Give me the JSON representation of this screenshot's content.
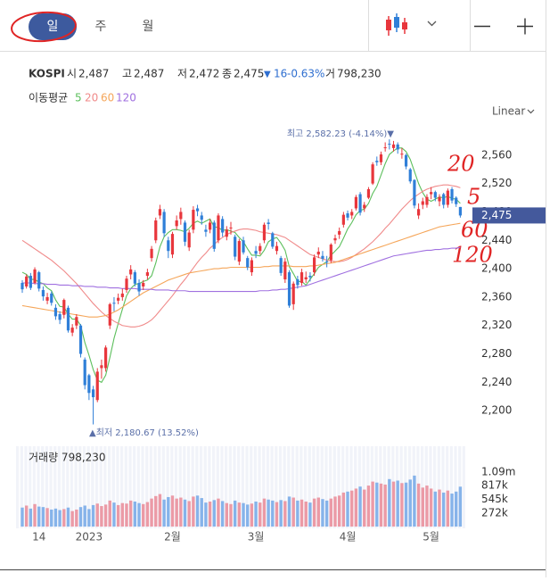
{
  "tabs": [
    "일",
    "주",
    "월"
  ],
  "linear_toggle": "Linear",
  "quote": {
    "symbol": "KOSPI",
    "open_label": "시",
    "open": "2,487",
    "high_label": "고",
    "high": "2,487",
    "low_label": "저",
    "low": "2,472",
    "close_label": "종",
    "close": "2,475",
    "change_arrow": "▼",
    "change": "16",
    "change_pct": "-0.63%",
    "volume_label": "거",
    "volume": "798,230"
  },
  "ma_legend_title": "이동평균",
  "handwritten": [
    "20",
    "5",
    "60",
    "120"
  ],
  "chart_data": {
    "type": "candlestick",
    "categories": [
      null,
      null,
      null,
      null,
      "14",
      null,
      null,
      null,
      null,
      null,
      null,
      null,
      null,
      null,
      null,
      null,
      "2023",
      null,
      null,
      null,
      null,
      null,
      null,
      null,
      null,
      null,
      null,
      null,
      null,
      null,
      null,
      null,
      null,
      null,
      null,
      null,
      "2월",
      null,
      null,
      null,
      null,
      null,
      null,
      null,
      null,
      null,
      null,
      null,
      null,
      null,
      null,
      null,
      null,
      null,
      null,
      null,
      "3월",
      null,
      null,
      null,
      null,
      null,
      null,
      null,
      null,
      null,
      null,
      null,
      null,
      null,
      null,
      null,
      null,
      null,
      null,
      null,
      null,
      null,
      "4월",
      null,
      null,
      null,
      null,
      null,
      null,
      null,
      null,
      null,
      null,
      null,
      null,
      null,
      null,
      null,
      null,
      null,
      null,
      null,
      "5월",
      null,
      null,
      null,
      null,
      null,
      null,
      null
    ],
    "open": [
      2380,
      2375,
      2390,
      2380,
      2395,
      2370,
      2355,
      2365,
      2345,
      2336,
      2335,
      2345,
      2310,
      2320,
      2320,
      2272,
      2250,
      2230,
      2215,
      2260,
      2260,
      2320,
      2352,
      2355,
      2360,
      2370,
      2392,
      2395,
      2380,
      2375,
      2390,
      2415,
      2440,
      2475,
      2480,
      2440,
      2420,
      2460,
      2470,
      2465,
      2430,
      2455,
      2485,
      2475,
      2455,
      2455,
      2465,
      2440,
      2470,
      2445,
      2458,
      2445,
      2410,
      2440,
      2415,
      2395,
      2425,
      2425,
      2440,
      2465,
      2450,
      2425,
      2415,
      2385,
      2395,
      2350,
      2385,
      2380,
      2385,
      2390,
      2395,
      2420,
      2418,
      2410,
      2412,
      2440,
      2448,
      2462,
      2478,
      2475,
      2485,
      2505,
      2485,
      2500,
      2520,
      2552,
      2550,
      2570,
      2576,
      2570,
      2575,
      2562,
      2560,
      2540,
      2525,
      2475,
      2490,
      2490,
      2505,
      2508,
      2495,
      2505,
      2490,
      2512,
      2500,
      2487
    ],
    "high": [
      2384,
      2392,
      2394,
      2402,
      2397,
      2375,
      2366,
      2368,
      2350,
      2340,
      2358,
      2348,
      2322,
      2336,
      2322,
      2275,
      2252,
      2235,
      2260,
      2272,
      2292,
      2352,
      2360,
      2365,
      2372,
      2390,
      2405,
      2398,
      2385,
      2384,
      2400,
      2432,
      2472,
      2490,
      2484,
      2445,
      2452,
      2475,
      2486,
      2468,
      2455,
      2488,
      2490,
      2480,
      2462,
      2470,
      2468,
      2478,
      2474,
      2460,
      2466,
      2448,
      2442,
      2445,
      2418,
      2416,
      2432,
      2436,
      2465,
      2470,
      2452,
      2438,
      2418,
      2415,
      2398,
      2382,
      2390,
      2400,
      2396,
      2395,
      2420,
      2430,
      2425,
      2418,
      2436,
      2448,
      2458,
      2480,
      2482,
      2484,
      2504,
      2508,
      2494,
      2515,
      2550,
      2558,
      2565,
      2578,
      2582.23,
      2580,
      2578,
      2570,
      2562,
      2542,
      2526,
      2492,
      2500,
      2505,
      2515,
      2510,
      2505,
      2507,
      2513,
      2515,
      2502,
      2487
    ],
    "low": [
      2366,
      2372,
      2370,
      2378,
      2368,
      2355,
      2350,
      2348,
      2328,
      2322,
      2330,
      2310,
      2305,
      2315,
      2275,
      2230,
      2215,
      2180.67,
      2212,
      2245,
      2255,
      2315,
      2340,
      2350,
      2355,
      2366,
      2385,
      2375,
      2362,
      2370,
      2385,
      2410,
      2436,
      2470,
      2445,
      2415,
      2415,
      2455,
      2462,
      2432,
      2425,
      2450,
      2474,
      2462,
      2445,
      2450,
      2424,
      2436,
      2445,
      2440,
      2448,
      2412,
      2405,
      2420,
      2398,
      2390,
      2415,
      2420,
      2436,
      2455,
      2428,
      2420,
      2390,
      2380,
      2345,
      2342,
      2372,
      2376,
      2380,
      2382,
      2390,
      2415,
      2410,
      2402,
      2408,
      2435,
      2442,
      2458,
      2468,
      2470,
      2482,
      2475,
      2480,
      2498,
      2518,
      2545,
      2546,
      2565,
      2568,
      2565,
      2562,
      2555,
      2540,
      2520,
      2485,
      2470,
      2484,
      2486,
      2498,
      2495,
      2488,
      2485,
      2486,
      2492,
      2487,
      2472
    ],
    "close": [
      2371,
      2389,
      2373,
      2399,
      2372,
      2361,
      2360,
      2352,
      2333,
      2328,
      2356,
      2313,
      2317,
      2332,
      2280,
      2236,
      2225,
      2219,
      2255,
      2264,
      2289,
      2350,
      2351,
      2359,
      2365,
      2386,
      2399,
      2379,
      2368,
      2380,
      2395,
      2428,
      2468,
      2484,
      2450,
      2425,
      2449,
      2468,
      2480,
      2438,
      2451,
      2483,
      2481,
      2469,
      2452,
      2465,
      2428,
      2475,
      2451,
      2455,
      2458,
      2417,
      2439,
      2423,
      2402,
      2412,
      2421,
      2432,
      2462,
      2463,
      2431,
      2432,
      2394,
      2410,
      2348,
      2379,
      2377,
      2395,
      2388,
      2388,
      2416,
      2424,
      2414,
      2409,
      2434,
      2443,
      2453,
      2476,
      2472,
      2480,
      2501,
      2479,
      2490,
      2512,
      2547,
      2550,
      2561,
      2571,
      2575,
      2575,
      2568,
      2562,
      2544,
      2523,
      2489,
      2484,
      2495,
      2501,
      2508,
      2500,
      2501,
      2490,
      2510,
      2496,
      2491,
      2475
    ],
    "up_color": "#e8363c",
    "down_color": "#2f7fd8",
    "ylim": [
      2160,
      2600
    ],
    "yticks": [
      {
        "value": 2200,
        "label": "2,200"
      },
      {
        "value": 2240,
        "label": "2,240"
      },
      {
        "value": 2280,
        "label": "2,280"
      },
      {
        "value": 2320,
        "label": "2,320"
      },
      {
        "value": 2360,
        "label": "2,360"
      },
      {
        "value": 2400,
        "label": "2,400"
      },
      {
        "value": 2440,
        "label": "2,440"
      },
      {
        "value": 2480,
        "label": "2,480"
      },
      {
        "value": 2520,
        "label": "2,520"
      },
      {
        "value": 2560,
        "label": "2,560"
      }
    ],
    "grid": false,
    "last_price_label": "2,475",
    "last_price_color": "#44599c",
    "annotations": [
      "최고 2,582.23 (-4.14%)▼",
      "▲최저 2,180.67 (13.52%)"
    ],
    "series": [
      {
        "name": "5",
        "color": "#5cbf5c",
        "values": [
          2395,
          2392,
          2385,
          2385,
          2381,
          2379,
          2373,
          2369,
          2356,
          2347,
          2346,
          2336,
          2329,
          2329,
          2320,
          2296,
          2278,
          2258,
          2243,
          2240,
          2250,
          2275,
          2302,
          2323,
          2343,
          2362,
          2372,
          2378,
          2379,
          2382,
          2384,
          2390,
          2408,
          2431,
          2445,
          2451,
          2455,
          2455,
          2454,
          2452,
          2457,
          2464,
          2467,
          2464,
          2467,
          2470,
          2459,
          2458,
          2454,
          2455,
          2453,
          2451,
          2444,
          2438,
          2428,
          2419,
          2419,
          2418,
          2426,
          2438,
          2442,
          2444,
          2436,
          2426,
          2403,
          2393,
          2382,
          2382,
          2377,
          2385,
          2393,
          2402,
          2406,
          2410,
          2419,
          2425,
          2431,
          2443,
          2456,
          2465,
          2476,
          2482,
          2484,
          2492,
          2506,
          2516,
          2532,
          2548,
          2561,
          2566,
          2570,
          2570,
          2565,
          2554,
          2537,
          2520,
          2507,
          2498,
          2495,
          2498,
          2501,
          2500,
          2502,
          2499,
          2498,
          2492
        ]
      },
      {
        "name": "20",
        "color": "#f08a8a",
        "values": [
          2440,
          2436,
          2432,
          2428,
          2424,
          2420,
          2416,
          2412,
          2407,
          2402,
          2397,
          2391,
          2385,
          2379,
          2372,
          2365,
          2358,
          2351,
          2345,
          2339,
          2334,
          2330,
          2326,
          2323,
          2320,
          2319,
          2318,
          2318,
          2319,
          2321,
          2324,
          2328,
          2334,
          2341,
          2348,
          2355,
          2362,
          2370,
          2378,
          2385,
          2393,
          2401,
          2409,
          2416,
          2422,
          2429,
          2434,
          2440,
          2444,
          2448,
          2451,
          2453,
          2455,
          2456,
          2456,
          2455,
          2454,
          2452,
          2451,
          2450,
          2449,
          2448,
          2446,
          2444,
          2440,
          2436,
          2432,
          2428,
          2424,
          2420,
          2418,
          2416,
          2414,
          2412,
          2411,
          2410,
          2410,
          2411,
          2413,
          2416,
          2420,
          2424,
          2428,
          2433,
          2438,
          2444,
          2450,
          2457,
          2463,
          2470,
          2477,
          2484,
          2490,
          2496,
          2501,
          2505,
          2509,
          2512,
          2514,
          2516,
          2517,
          2518,
          2518,
          2517,
          2516,
          2514
        ]
      },
      {
        "name": "60",
        "color": "#f5a65a",
        "values": [
          2348,
          2347,
          2346,
          2345,
          2344,
          2343,
          2342,
          2341,
          2340,
          2339,
          2338,
          2337,
          2336,
          2335,
          2334,
          2333,
          2332,
          2332,
          2332,
          2333,
          2334,
          2336,
          2339,
          2342,
          2346,
          2350,
          2354,
          2358,
          2362,
          2366,
          2369,
          2372,
          2375,
          2378,
          2381,
          2384,
          2386,
          2388,
          2390,
          2392,
          2394,
          2395,
          2396,
          2397,
          2398,
          2399,
          2400,
          2400,
          2401,
          2401,
          2402,
          2402,
          2402,
          2402,
          2402,
          2402,
          2402,
          2402,
          2403,
          2403,
          2404,
          2404,
          2404,
          2404,
          2404,
          2403,
          2403,
          2403,
          2403,
          2404,
          2404,
          2405,
          2406,
          2407,
          2408,
          2409,
          2411,
          2413,
          2415,
          2417,
          2419,
          2421,
          2423,
          2425,
          2427,
          2429,
          2431,
          2433,
          2435,
          2437,
          2439,
          2441,
          2443,
          2445,
          2447,
          2449,
          2451,
          2453,
          2455,
          2457,
          2459,
          2460,
          2461,
          2462,
          2463,
          2464
        ]
      },
      {
        "name": "120",
        "color": "#a070e0",
        "values": [
          2380,
          2380,
          2380,
          2379,
          2379,
          2379,
          2378,
          2378,
          2378,
          2377,
          2377,
          2377,
          2376,
          2376,
          2376,
          2375,
          2375,
          2375,
          2374,
          2374,
          2374,
          2373,
          2373,
          2373,
          2372,
          2372,
          2372,
          2372,
          2371,
          2371,
          2371,
          2371,
          2370,
          2370,
          2370,
          2370,
          2369,
          2369,
          2369,
          2369,
          2368,
          2368,
          2368,
          2368,
          2368,
          2368,
          2368,
          2368,
          2368,
          2368,
          2368,
          2368,
          2368,
          2368,
          2368,
          2368,
          2368,
          2369,
          2369,
          2369,
          2370,
          2370,
          2371,
          2371,
          2372,
          2373,
          2374,
          2375,
          2376,
          2378,
          2380,
          2382,
          2384,
          2386,
          2388,
          2390,
          2392,
          2394,
          2396,
          2398,
          2400,
          2402,
          2404,
          2406,
          2408,
          2410,
          2412,
          2414,
          2416,
          2418,
          2419,
          2420,
          2421,
          2422,
          2423,
          2424,
          2425,
          2426,
          2426,
          2427,
          2427,
          2428,
          2428,
          2429,
          2429,
          2430
        ]
      }
    ],
    "volume": {
      "label": "거래량 798,230",
      "up_color": "#eb9aa6",
      "down_color": "#86b3ea",
      "values": [
        380000,
        420000,
        360000,
        450000,
        400000,
        390000,
        370000,
        340000,
        360000,
        330000,
        350000,
        380000,
        310000,
        340000,
        390000,
        420000,
        350000,
        430000,
        460000,
        410000,
        440000,
        520000,
        480000,
        430000,
        470000,
        460000,
        520000,
        500000,
        470000,
        450000,
        490000,
        560000,
        610000,
        650000,
        540000,
        590000,
        620000,
        560000,
        580000,
        540000,
        510000,
        600000,
        620000,
        570000,
        480000,
        500000,
        530000,
        560000,
        510000,
        470000,
        450000,
        520000,
        480000,
        470000,
        440000,
        460000,
        500000,
        480000,
        560000,
        540000,
        520000,
        490000,
        530000,
        510000,
        600000,
        580000,
        520000,
        540000,
        500000,
        480000,
        560000,
        580000,
        550000,
        520000,
        560000,
        600000,
        620000,
        680000,
        700000,
        720000,
        760000,
        800000,
        740000,
        820000,
        900000,
        880000,
        860000,
        840000,
        950000,
        900000,
        920000,
        870000,
        880000,
        940000,
        1020000,
        860000,
        780000,
        820000,
        760000,
        700000,
        740000,
        680000,
        720000,
        660000,
        700000,
        798230
      ]
    },
    "y2lim": [
      0,
      1500000
    ],
    "y2ticks": [
      {
        "value": 272000,
        "label": "272k"
      },
      {
        "value": 545000,
        "label": "545k"
      },
      {
        "value": 817000,
        "label": "817k"
      },
      {
        "value": 1090000,
        "label": "1.09m"
      }
    ]
  }
}
